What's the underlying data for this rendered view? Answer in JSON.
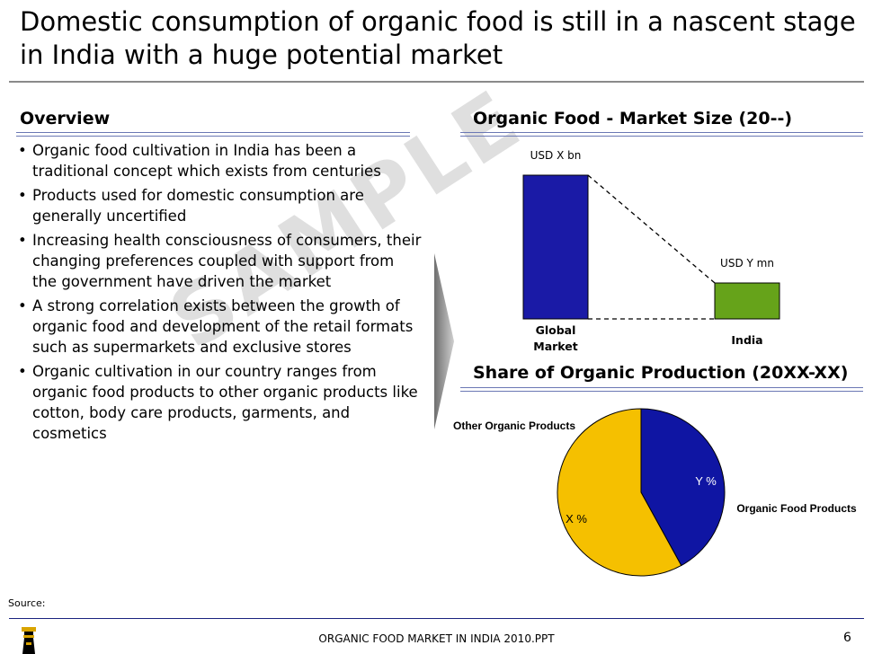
{
  "slide": {
    "title": "Domestic consumption of organic food is still in a nascent stage in India with a huge potential market",
    "watermark": "SAMPLE",
    "overview": {
      "heading": "Overview",
      "bullets": [
        "Organic food cultivation in India has been a traditional concept which exists from centuries",
        "Products used for domestic consumption are generally uncertified",
        "Increasing health consciousness of consumers, their changing preferences coupled with support from the government have driven the market",
        "A strong correlation exists between the growth of organic food and development of the retail formats such as supermarkets and exclusive stores",
        "Organic cultivation in our country ranges from organic food products to other organic products like cotton, body care products, garments, and cosmetics"
      ]
    },
    "source_label": "Source:",
    "footer_text": "ORGANIC FOOD MARKET IN INDIA 2010.PPT",
    "page_number": "6"
  },
  "chart_data": [
    {
      "type": "bar",
      "title": "Organic Food - Market Size (20--)",
      "categories": [
        "Global Market",
        "India"
      ],
      "category_lines": [
        [
          "Global",
          "Market"
        ],
        [
          "India"
        ]
      ],
      "values": [
        100,
        25
      ],
      "data_labels": [
        "USD X bn",
        "USD Y mn"
      ],
      "colors": [
        "#1a1aa6",
        "#66a31a"
      ]
    },
    {
      "type": "pie",
      "title": "Share of Organic Production (20XX-XX)",
      "slices": [
        {
          "name": "Organic Food Products",
          "label": "Y %",
          "value": 42,
          "color": "#0f15a3"
        },
        {
          "name": "Other Organic Products",
          "label": "X %",
          "value": 58,
          "color": "#f5c000"
        }
      ]
    }
  ]
}
